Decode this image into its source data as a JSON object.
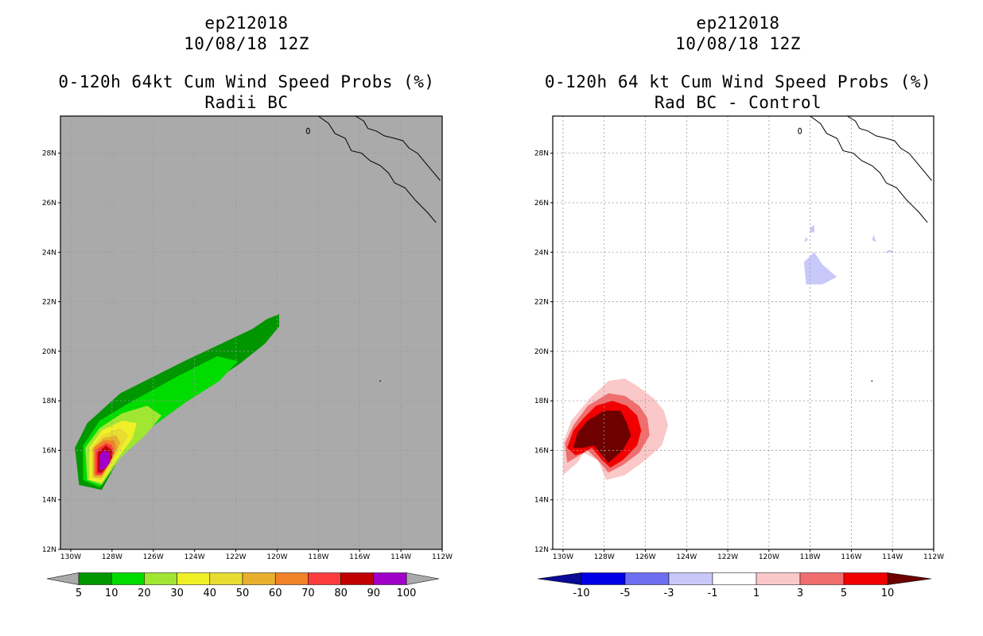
{
  "chart_data": [
    {
      "type": "heatmap",
      "storm_id": "ep212018",
      "datetime": "10/08/18 12Z",
      "title": "0-120h 64kt Cum Wind Speed Probs (%)",
      "subtitle": "Radii BC",
      "map_background": "#aaaaaa",
      "xlim": [
        -130.5,
        -112
      ],
      "ylim": [
        12,
        29.5
      ],
      "x_ticks": [
        "130W",
        "128W",
        "126W",
        "124W",
        "122W",
        "120W",
        "118W",
        "116W",
        "114W",
        "112W"
      ],
      "y_ticks": [
        "12N",
        "14N",
        "16N",
        "18N",
        "20N",
        "22N",
        "24N",
        "26N",
        "28N"
      ],
      "grid": true,
      "colorbar": {
        "labels": [
          "5",
          "10",
          "20",
          "30",
          "40",
          "50",
          "60",
          "70",
          "80",
          "90",
          "100"
        ],
        "colors": [
          "#009600",
          "#00dc00",
          "#a0e632",
          "#f0f028",
          "#e6dc32",
          "#e6af2d",
          "#f08228",
          "#fa3c3c",
          "#c00000",
          "#a000c8"
        ]
      },
      "contours": [
        {
          "level": 5,
          "color": "#009600",
          "polygon": [
            [
              -129.6,
              14.6
            ],
            [
              -129.8,
              16.1
            ],
            [
              -129.2,
              17.1
            ],
            [
              -127.6,
              18.3
            ],
            [
              -124.5,
              19.6
            ],
            [
              -121.2,
              20.9
            ],
            [
              -120.5,
              21.3
            ],
            [
              -119.9,
              21.5
            ],
            [
              -119.9,
              21.0
            ],
            [
              -120.6,
              20.3
            ],
            [
              -121.8,
              19.5
            ],
            [
              -123.6,
              18.5
            ],
            [
              -125.6,
              17.3
            ],
            [
              -127.5,
              15.9
            ],
            [
              -128.5,
              14.4
            ]
          ]
        },
        {
          "level": 10,
          "color": "#00dc00",
          "polygon": [
            [
              -129.4,
              14.8
            ],
            [
              -129.4,
              16.2
            ],
            [
              -128.6,
              17.2
            ],
            [
              -127.2,
              17.9
            ],
            [
              -124.8,
              19.0
            ],
            [
              -122.9,
              19.8
            ],
            [
              -121.9,
              19.6
            ],
            [
              -122.8,
              18.8
            ],
            [
              -124.5,
              17.9
            ],
            [
              -126.3,
              16.8
            ],
            [
              -127.8,
              15.6
            ],
            [
              -128.6,
              14.5
            ]
          ]
        },
        {
          "level": 20,
          "color": "#a0e632",
          "polygon": [
            [
              -129.2,
              14.8
            ],
            [
              -129.3,
              16.1
            ],
            [
              -128.6,
              16.9
            ],
            [
              -127.5,
              17.5
            ],
            [
              -126.3,
              17.8
            ],
            [
              -125.6,
              17.4
            ],
            [
              -126.4,
              16.6
            ],
            [
              -127.6,
              15.7
            ],
            [
              -128.5,
              14.6
            ]
          ]
        },
        {
          "level": 30,
          "color": "#f0f028",
          "polygon": [
            [
              -129.1,
              14.8
            ],
            [
              -129.1,
              16.1
            ],
            [
              -128.5,
              16.8
            ],
            [
              -127.5,
              17.2
            ],
            [
              -126.8,
              17.1
            ],
            [
              -127.0,
              16.5
            ],
            [
              -127.8,
              15.6
            ],
            [
              -128.5,
              14.7
            ]
          ]
        },
        {
          "level": 40,
          "color": "#e6dc32",
          "polygon": [
            [
              -129.0,
              14.9
            ],
            [
              -129.0,
              16.1
            ],
            [
              -128.5,
              16.6
            ],
            [
              -127.6,
              16.9
            ],
            [
              -127.2,
              16.6
            ],
            [
              -127.7,
              15.9
            ],
            [
              -128.5,
              14.8
            ]
          ]
        },
        {
          "level": 50,
          "color": "#e6af2d",
          "polygon": [
            [
              -128.9,
              14.9
            ],
            [
              -128.9,
              16.1
            ],
            [
              -128.4,
              16.5
            ],
            [
              -127.8,
              16.6
            ],
            [
              -127.6,
              16.3
            ],
            [
              -127.9,
              15.8
            ],
            [
              -128.5,
              14.9
            ]
          ]
        },
        {
          "level": 60,
          "color": "#f08228",
          "polygon": [
            [
              -128.9,
              15.0
            ],
            [
              -128.9,
              16.1
            ],
            [
              -128.4,
              16.4
            ],
            [
              -127.9,
              16.4
            ],
            [
              -127.8,
              16.1
            ],
            [
              -128.1,
              15.6
            ],
            [
              -128.5,
              15.0
            ]
          ]
        },
        {
          "level": 70,
          "color": "#fa3c3c",
          "polygon": [
            [
              -128.8,
              15.0
            ],
            [
              -128.8,
              16.0
            ],
            [
              -128.3,
              16.3
            ],
            [
              -128.0,
              16.2
            ],
            [
              -127.9,
              15.9
            ],
            [
              -128.1,
              15.5
            ],
            [
              -128.5,
              15.0
            ]
          ]
        },
        {
          "level": 80,
          "color": "#c00000",
          "polygon": [
            [
              -128.7,
              15.1
            ],
            [
              -128.7,
              15.9
            ],
            [
              -128.3,
              16.2
            ],
            [
              -128.0,
              16.0
            ],
            [
              -128.0,
              15.7
            ],
            [
              -128.2,
              15.4
            ],
            [
              -128.5,
              15.1
            ]
          ]
        },
        {
          "level": 90,
          "color": "#a000c8",
          "polygon": [
            [
              -128.6,
              15.2
            ],
            [
              -128.6,
              15.8
            ],
            [
              -128.4,
              16.0
            ],
            [
              -128.1,
              15.9
            ],
            [
              -128.1,
              15.5
            ],
            [
              -128.3,
              15.3
            ],
            [
              -128.5,
              15.2
            ]
          ]
        }
      ]
    },
    {
      "type": "heatmap",
      "storm_id": "ep212018",
      "datetime": "10/08/18 12Z",
      "title": "0-120h 64 kt Cum Wind Speed Probs (%)",
      "subtitle": "Rad BC - Control",
      "map_background": "#ffffff",
      "xlim": [
        -130.5,
        -112
      ],
      "ylim": [
        12,
        29.5
      ],
      "x_ticks": [
        "130W",
        "128W",
        "126W",
        "124W",
        "122W",
        "120W",
        "118W",
        "116W",
        "114W",
        "112W"
      ],
      "y_ticks": [
        "12N",
        "14N",
        "16N",
        "18N",
        "20N",
        "22N",
        "24N",
        "26N",
        "28N"
      ],
      "grid": true,
      "colorbar": {
        "labels": [
          "-10",
          "-5",
          "-3",
          "-1",
          "1",
          "3",
          "5",
          "10"
        ],
        "colors": [
          "#0a0a96",
          "#0000e6",
          "#6e6ef0",
          "#c8c8fa",
          "#ffffff",
          "#fac8c8",
          "#f06e6e",
          "#f00000",
          "#6e0000"
        ]
      },
      "contours": [
        {
          "level": -1,
          "color": "#c8c8fa",
          "polygon": [
            [
              -118.3,
              23.6
            ],
            [
              -118.2,
              22.7
            ],
            [
              -117.4,
              22.7
            ],
            [
              -116.7,
              23.0
            ],
            [
              -117.4,
              23.5
            ],
            [
              -117.8,
              24.0
            ]
          ]
        },
        {
          "level": -1,
          "color": "#c8c8fa",
          "polygon": [
            [
              -118.0,
              24.8
            ],
            [
              -117.8,
              24.8
            ],
            [
              -117.8,
              25.1
            ],
            [
              -118.0,
              25.0
            ]
          ]
        },
        {
          "level": -1,
          "color": "#c8c8fa",
          "polygon": [
            [
              -118.3,
              24.4
            ],
            [
              -118.1,
              24.5
            ],
            [
              -118.2,
              24.6
            ]
          ]
        },
        {
          "level": -1,
          "color": "#c8c8fa",
          "polygon": [
            [
              -115.0,
              24.5
            ],
            [
              -114.8,
              24.4
            ],
            [
              -114.9,
              24.7
            ]
          ]
        },
        {
          "level": -1,
          "color": "#c8c8fa",
          "polygon": [
            [
              -114.4,
              24.0
            ],
            [
              -113.9,
              24.0
            ],
            [
              -114.1,
              24.1
            ]
          ]
        },
        {
          "level": 1,
          "color": "#fac8c8",
          "polygon": [
            [
              -130.0,
              16.3
            ],
            [
              -130.0,
              15.0
            ],
            [
              -129.3,
              15.5
            ],
            [
              -129.0,
              15.9
            ],
            [
              -128.3,
              15.6
            ],
            [
              -127.9,
              14.8
            ],
            [
              -127.0,
              15.0
            ],
            [
              -126.0,
              15.6
            ],
            [
              -125.2,
              16.2
            ],
            [
              -124.9,
              17.0
            ],
            [
              -125.1,
              17.6
            ],
            [
              -125.6,
              18.1
            ],
            [
              -126.4,
              18.6
            ],
            [
              -127.0,
              18.9
            ],
            [
              -127.8,
              18.8
            ],
            [
              -128.7,
              18.1
            ],
            [
              -129.6,
              17.2
            ]
          ]
        },
        {
          "level": 3,
          "color": "#f06e6e",
          "polygon": [
            [
              -129.9,
              16.3
            ],
            [
              -129.8,
              15.5
            ],
            [
              -129.2,
              15.8
            ],
            [
              -128.8,
              16.0
            ],
            [
              -128.2,
              15.5
            ],
            [
              -127.8,
              15.1
            ],
            [
              -127.1,
              15.4
            ],
            [
              -126.3,
              15.9
            ],
            [
              -125.8,
              16.6
            ],
            [
              -125.9,
              17.3
            ],
            [
              -126.3,
              17.8
            ],
            [
              -127.0,
              18.2
            ],
            [
              -127.8,
              18.3
            ],
            [
              -128.8,
              17.8
            ],
            [
              -129.5,
              17.0
            ]
          ]
        },
        {
          "level": 5,
          "color": "#f00000",
          "polygon": [
            [
              -129.8,
              16.1
            ],
            [
              -129.4,
              15.8
            ],
            [
              -129.0,
              15.9
            ],
            [
              -128.6,
              16.1
            ],
            [
              -128.1,
              15.6
            ],
            [
              -127.7,
              15.3
            ],
            [
              -127.1,
              15.6
            ],
            [
              -126.4,
              16.2
            ],
            [
              -126.2,
              16.8
            ],
            [
              -126.4,
              17.4
            ],
            [
              -126.9,
              17.8
            ],
            [
              -127.6,
              18.0
            ],
            [
              -128.4,
              17.8
            ],
            [
              -129.0,
              17.3
            ],
            [
              -129.5,
              16.8
            ]
          ]
        },
        {
          "level": 10,
          "color": "#6e0000",
          "polygon": [
            [
              -129.5,
              16.1
            ],
            [
              -129.0,
              16.1
            ],
            [
              -128.5,
              16.2
            ],
            [
              -128.1,
              15.8
            ],
            [
              -127.8,
              15.5
            ],
            [
              -127.1,
              16.0
            ],
            [
              -126.7,
              16.6
            ],
            [
              -126.9,
              17.1
            ],
            [
              -127.2,
              17.6
            ],
            [
              -128.0,
              17.6
            ],
            [
              -128.8,
              17.2
            ],
            [
              -129.3,
              16.7
            ]
          ]
        }
      ]
    }
  ]
}
